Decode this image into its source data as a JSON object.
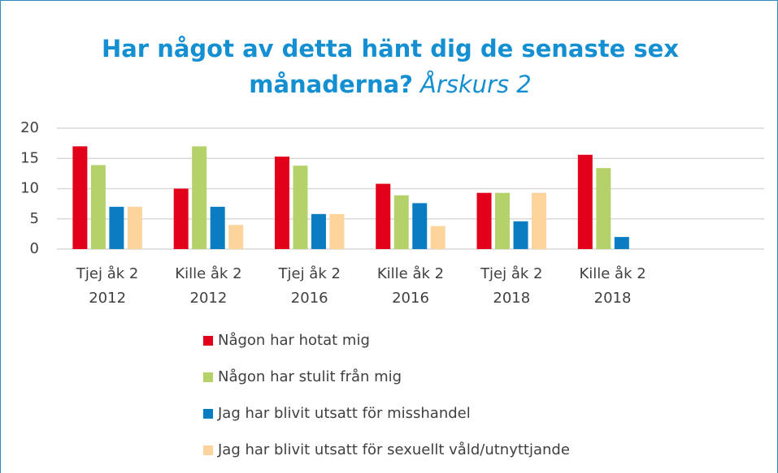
{
  "chart_data": {
    "type": "bar",
    "title": [
      "Har något av detta hänt dig de senaste sex",
      "månaderna?"
    ],
    "subtitle": "Årskurs 2",
    "categories": [
      [
        "Tjej åk 2",
        "2012"
      ],
      [
        "Kille åk 2",
        "2012"
      ],
      [
        "Tjej åk 2",
        "2016"
      ],
      [
        "Kille åk 2",
        "2016"
      ],
      [
        "Tjej åk 2",
        "2018"
      ],
      [
        "Kille åk 2",
        "2018"
      ],
      null
    ],
    "series": [
      {
        "name": "Någon har hotat mig",
        "color": "#e3001b",
        "values": [
          17,
          10,
          15.3,
          10.8,
          9.3,
          15.6,
          null
        ]
      },
      {
        "name": "Någon har stulit från mig",
        "color": "#b4d16a",
        "values": [
          13.9,
          17,
          13.8,
          8.9,
          9.3,
          13.4,
          null
        ]
      },
      {
        "name": "Jag har blivit utsatt för misshandel",
        "color": "#0a7dc2",
        "values": [
          7,
          7,
          5.8,
          7.6,
          4.6,
          2,
          null
        ]
      },
      {
        "name": "Jag har blivit utsatt för sexuellt våld/utnyttjande",
        "color": "#fdd49b",
        "values": [
          7,
          4,
          5.8,
          3.8,
          9.3,
          null,
          null
        ]
      }
    ],
    "ylim": [
      0,
      20
    ],
    "yticks": [
      0,
      5,
      10,
      15,
      20
    ],
    "grid": true,
    "legend": "bottom"
  }
}
